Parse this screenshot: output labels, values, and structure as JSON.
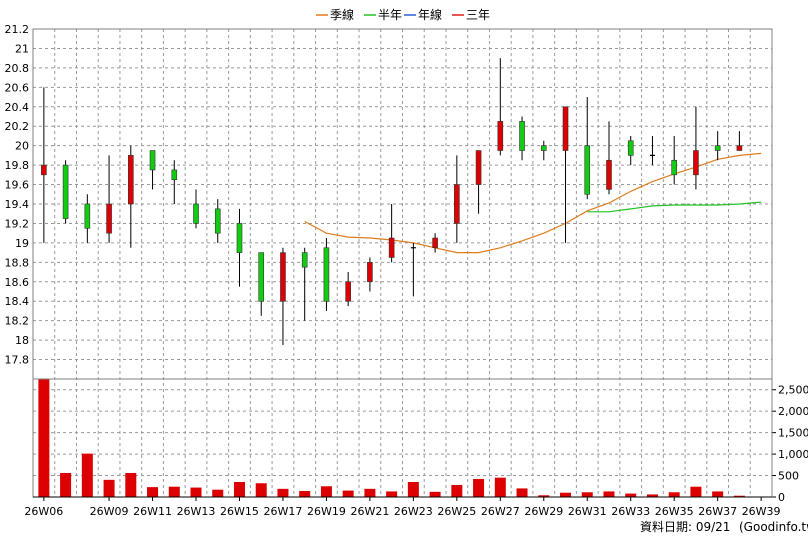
{
  "legend": [
    {
      "label": "季線",
      "color": "#e07b1c"
    },
    {
      "label": "半年",
      "color": "#22c322"
    },
    {
      "label": "年線",
      "color": "#2a5fd6"
    },
    {
      "label": "三年",
      "color": "#e01c1c"
    }
  ],
  "footer": {
    "date_text": "資料日期: 09/21",
    "source_text": "(Goodinfo.tw)"
  },
  "colors": {
    "up": "#dd0000",
    "down": "#11cc11",
    "grid": "#9a9a9a",
    "plot_border": "#808080"
  },
  "chart_data": [
    {
      "type": "candlestick",
      "weeks": [
        "26W06",
        "26W07",
        "26W08",
        "26W09",
        "26W10",
        "26W11",
        "26W12",
        "26W13",
        "26W14",
        "26W15",
        "26W16",
        "26W17",
        "26W18",
        "26W19",
        "26W20",
        "26W21",
        "26W22",
        "26W23",
        "26W24",
        "26W25",
        "26W26",
        "26W27",
        "26W28",
        "26W29",
        "26W30",
        "26W31",
        "26W32",
        "26W33",
        "26W34",
        "26W35",
        "26W36",
        "26W37",
        "26W38",
        "26W39"
      ],
      "x_tick_labels": [
        "26W06",
        "26W09",
        "26W11",
        "26W13",
        "26W15",
        "26W17",
        "26W19",
        "26W21",
        "26W23",
        "26W25",
        "26W27",
        "26W29",
        "26W31",
        "26W33",
        "26W35",
        "26W37",
        "26W39"
      ],
      "y_tick_labels": [
        "17.8",
        "18",
        "18.2",
        "18.4",
        "18.6",
        "18.8",
        "19",
        "19.2",
        "19.4",
        "19.6",
        "19.8",
        "20",
        "20.2",
        "20.4",
        "20.6",
        "20.8",
        "21",
        "21.2"
      ],
      "ylim": [
        17.6,
        21.2
      ],
      "candles": [
        {
          "open": 19.7,
          "close": 19.8,
          "high": 20.6,
          "low": 19.0
        },
        {
          "open": 19.8,
          "close": 19.25,
          "high": 19.85,
          "low": 19.2
        },
        {
          "open": 19.4,
          "close": 19.15,
          "high": 19.5,
          "low": 19.0
        },
        {
          "open": 19.1,
          "close": 19.4,
          "high": 19.9,
          "low": 19.0
        },
        {
          "open": 19.4,
          "close": 19.9,
          "high": 20.0,
          "low": 18.95
        },
        {
          "open": 19.95,
          "close": 19.75,
          "high": 19.95,
          "low": 19.55
        },
        {
          "open": 19.75,
          "close": 19.65,
          "high": 19.85,
          "low": 19.4
        },
        {
          "open": 19.4,
          "close": 19.2,
          "high": 19.55,
          "low": 19.15
        },
        {
          "open": 19.35,
          "close": 19.1,
          "high": 19.45,
          "low": 19.0
        },
        {
          "open": 19.2,
          "close": 18.9,
          "high": 19.35,
          "low": 18.55
        },
        {
          "open": 18.9,
          "close": 18.4,
          "high": 18.9,
          "low": 18.25
        },
        {
          "open": 18.4,
          "close": 18.9,
          "high": 18.95,
          "low": 17.95
        },
        {
          "open": 18.9,
          "close": 18.75,
          "high": 18.95,
          "low": 18.2
        },
        {
          "open": 18.95,
          "close": 18.4,
          "high": 19.05,
          "low": 18.3
        },
        {
          "open": 18.4,
          "close": 18.6,
          "high": 18.7,
          "low": 18.35
        },
        {
          "open": 18.6,
          "close": 18.8,
          "high": 18.85,
          "low": 18.5
        },
        {
          "open": 18.85,
          "close": 19.05,
          "high": 19.4,
          "low": 18.8
        },
        {
          "open": 18.95,
          "close": 18.95,
          "high": 19.0,
          "low": 18.45
        },
        {
          "open": 18.95,
          "close": 19.05,
          "high": 19.1,
          "low": 18.9
        },
        {
          "open": 19.2,
          "close": 19.6,
          "high": 19.9,
          "low": 19.0
        },
        {
          "open": 19.6,
          "close": 19.95,
          "high": 19.95,
          "low": 19.3
        },
        {
          "open": 19.95,
          "close": 20.25,
          "high": 20.9,
          "low": 19.9
        },
        {
          "open": 20.25,
          "close": 19.95,
          "high": 20.3,
          "low": 19.85
        },
        {
          "open": 20.0,
          "close": 19.95,
          "high": 20.05,
          "low": 19.85
        },
        {
          "open": 19.95,
          "close": 20.4,
          "high": 20.4,
          "low": 19.0
        },
        {
          "open": 20.0,
          "close": 19.5,
          "high": 20.5,
          "low": 19.45
        },
        {
          "open": 19.55,
          "close": 19.85,
          "high": 20.25,
          "low": 19.5
        },
        {
          "open": 20.05,
          "close": 19.9,
          "high": 20.1,
          "low": 19.8
        },
        {
          "open": 19.9,
          "close": 19.9,
          "high": 20.1,
          "low": 19.8
        },
        {
          "open": 19.85,
          "close": 19.7,
          "high": 20.1,
          "low": 19.6
        },
        {
          "open": 19.7,
          "close": 19.95,
          "high": 20.4,
          "low": 19.55
        },
        {
          "open": 20.0,
          "close": 19.95,
          "high": 20.15,
          "low": 19.85
        },
        {
          "open": 19.95,
          "close": 20.0,
          "high": 20.15,
          "low": 19.95
        }
      ],
      "series": [
        {
          "name": "季線",
          "color": "#e07b1c",
          "values": [
            null,
            null,
            null,
            null,
            null,
            null,
            null,
            null,
            null,
            null,
            null,
            null,
            19.22,
            19.1,
            19.06,
            19.05,
            19.03,
            19.0,
            18.95,
            18.9,
            18.9,
            18.95,
            19.02,
            19.1,
            19.2,
            19.33,
            19.41,
            19.53,
            19.63,
            19.71,
            19.78,
            19.86,
            19.9,
            19.92
          ]
        },
        {
          "name": "半年",
          "color": "#22c322",
          "values": [
            null,
            null,
            null,
            null,
            null,
            null,
            null,
            null,
            null,
            null,
            null,
            null,
            null,
            null,
            null,
            null,
            null,
            null,
            null,
            null,
            null,
            null,
            null,
            null,
            null,
            19.32,
            19.32,
            19.35,
            19.38,
            19.39,
            19.39,
            19.39,
            19.4,
            19.42
          ]
        }
      ]
    },
    {
      "type": "bar",
      "y_tick_labels": [
        "0",
        "500",
        "1,000",
        "1,500",
        "2,000",
        "2,500"
      ],
      "ylim": [
        0,
        2750
      ],
      "values": [
        2750,
        560,
        1010,
        400,
        560,
        230,
        240,
        220,
        170,
        350,
        320,
        190,
        140,
        250,
        150,
        190,
        130,
        350,
        120,
        280,
        420,
        450,
        200,
        40,
        100,
        110,
        130,
        80,
        60,
        110,
        240,
        130,
        30,
        0
      ]
    }
  ]
}
